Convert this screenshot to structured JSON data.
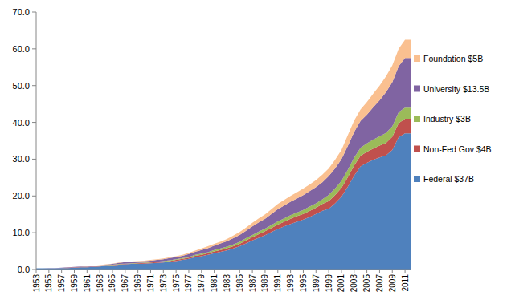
{
  "chart_data": {
    "type": "area",
    "stacked": true,
    "grid": false,
    "legend": "right",
    "categories": [
      "1953",
      null,
      "1955",
      null,
      "1957",
      null,
      "1959",
      null,
      "1961",
      null,
      "1963",
      null,
      "1965",
      null,
      "1967",
      null,
      "1969",
      null,
      "1971",
      null,
      "1973",
      null,
      "1975",
      null,
      "1977",
      null,
      "1979",
      null,
      "1981",
      null,
      "1983",
      null,
      "1985",
      null,
      "1987",
      null,
      "1989",
      null,
      "1991",
      null,
      "1993",
      null,
      "1995",
      null,
      "1997",
      null,
      "1999",
      null,
      "2001",
      null,
      "2003",
      null,
      "2005",
      null,
      "2007",
      null,
      "2009",
      null,
      "2011",
      null
    ],
    "ylim": [
      0,
      70
    ],
    "yticks": [
      {
        "value": 0,
        "label": "0.0"
      },
      {
        "value": 10,
        "label": "10.0"
      },
      {
        "value": 20,
        "label": "20.0"
      },
      {
        "value": 30,
        "label": "30.0"
      },
      {
        "value": 40,
        "label": "40.0"
      },
      {
        "value": 50,
        "label": "50.0"
      },
      {
        "value": 60,
        "label": "60.0"
      },
      {
        "value": 70,
        "label": "70.0"
      }
    ],
    "series": [
      {
        "name": "Federal $37B",
        "color": "#4f81bd",
        "values": [
          0.3,
          0.3,
          0.3,
          0.3,
          0.4,
          0.4,
          0.5,
          0.6,
          0.6,
          0.7,
          0.8,
          1.0,
          1.1,
          1.3,
          1.4,
          1.5,
          1.5,
          1.6,
          1.7,
          1.8,
          1.9,
          2.1,
          2.3,
          2.6,
          2.9,
          3.3,
          3.6,
          4.0,
          4.4,
          4.8,
          5.2,
          5.7,
          6.3,
          7.1,
          7.9,
          8.6,
          9.3,
          10.2,
          11.0,
          11.7,
          12.4,
          13.0,
          13.6,
          14.3,
          15.1,
          16.0,
          16.5,
          18.0,
          19.8,
          22.5,
          25.5,
          28.0,
          29.0,
          29.8,
          30.5,
          31.0,
          32.5,
          36.0,
          37.0,
          37.0
        ]
      },
      {
        "name": "Non-Fed Gov $4B",
        "color": "#c0504d",
        "values": [
          0,
          0,
          0,
          0,
          0,
          0.1,
          0.1,
          0.1,
          0.1,
          0.1,
          0.1,
          0.1,
          0.1,
          0.1,
          0.1,
          0.1,
          0.2,
          0.2,
          0.2,
          0.2,
          0.2,
          0.2,
          0.3,
          0.3,
          0.3,
          0.4,
          0.4,
          0.4,
          0.5,
          0.5,
          0.6,
          0.6,
          0.7,
          0.8,
          0.9,
          1.0,
          1.1,
          1.1,
          1.2,
          1.3,
          1.4,
          1.5,
          1.5,
          1.6,
          1.7,
          1.8,
          2.1,
          2.2,
          2.4,
          2.6,
          2.8,
          2.9,
          3.0,
          3.1,
          3.2,
          3.4,
          3.6,
          3.8,
          4,
          4
        ]
      },
      {
        "name": "Industry $3B",
        "color": "#9bbb59",
        "values": [
          0,
          0,
          0,
          0,
          0,
          0,
          0,
          0,
          0,
          0,
          0.1,
          0.1,
          0.1,
          0.1,
          0.1,
          0.1,
          0.1,
          0.1,
          0.1,
          0.1,
          0.2,
          0.2,
          0.2,
          0.2,
          0.2,
          0.3,
          0.3,
          0.3,
          0.4,
          0.4,
          0.4,
          0.5,
          0.5,
          0.6,
          0.6,
          0.7,
          0.7,
          0.8,
          0.9,
          0.9,
          1.0,
          1.0,
          1.1,
          1.2,
          1.2,
          1.3,
          1.7,
          1.8,
          1.9,
          2.0,
          2.1,
          2.2,
          2.3,
          2.4,
          2.5,
          2.7,
          2.8,
          3.0,
          3,
          3
        ]
      },
      {
        "name": "University $13.5B",
        "color": "#8064a2",
        "values": [
          0,
          0,
          0.1,
          0.1,
          0.1,
          0.1,
          0.1,
          0.1,
          0.1,
          0.1,
          0.1,
          0.1,
          0.2,
          0.3,
          0.4,
          0.4,
          0.4,
          0.4,
          0.4,
          0.5,
          0.5,
          0.6,
          0.6,
          0.6,
          0.8,
          0.8,
          1.0,
          1.1,
          1.2,
          1.4,
          1.5,
          1.7,
          1.9,
          2.0,
          2.3,
          2.5,
          2.7,
          3.0,
          3.3,
          3.5,
          3.6,
          3.8,
          4.0,
          4.2,
          4.4,
          4.6,
          5.1,
          5.5,
          5.9,
          6.5,
          7.0,
          7.3,
          7.8,
          8.8,
          9.8,
          11.1,
          12.0,
          12.5,
          13.5,
          13.5
        ]
      },
      {
        "name": "Foundation $5B",
        "color": "#fac090",
        "values": [
          0,
          0,
          0,
          0,
          0,
          0,
          0,
          0,
          0.1,
          0.1,
          0.1,
          0.1,
          0.1,
          0.1,
          0.1,
          0.1,
          0.1,
          0.1,
          0.2,
          0.2,
          0.2,
          0.2,
          0.2,
          0.3,
          0.3,
          0.3,
          0.4,
          0.5,
          0.5,
          0.5,
          0.6,
          0.7,
          0.8,
          0.9,
          1.0,
          1.1,
          1.2,
          1.3,
          1.4,
          1.5,
          1.6,
          1.7,
          1.8,
          1.8,
          1.9,
          2.1,
          2.1,
          2.3,
          2.5,
          2.9,
          3.1,
          3.1,
          3.4,
          3.7,
          4.0,
          4.3,
          4.6,
          4.7,
          5,
          5
        ]
      }
    ]
  }
}
